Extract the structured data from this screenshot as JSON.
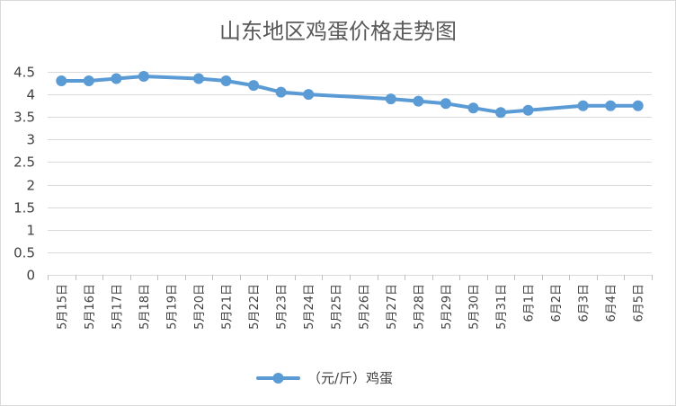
{
  "chart_data": {
    "type": "line",
    "title": "山东地区鸡蛋价格走势图",
    "x": [
      "5月15日",
      "5月16日",
      "5月17日",
      "5月18日",
      "5月19日",
      "5月20日",
      "5月21日",
      "5月22日",
      "5月23日",
      "5月24日",
      "5月25日",
      "5月26日",
      "5月27日",
      "5月28日",
      "5月29日",
      "5月30日",
      "5月31日",
      "6月1日",
      "6月2日",
      "6月3日",
      "6月4日",
      "6月5日"
    ],
    "yticks": [
      "0",
      "0.5",
      "1",
      "1.5",
      "2",
      "2.5",
      "3",
      "3.5",
      "4",
      "4.5"
    ],
    "ylim": [
      0,
      4.5
    ],
    "grid": true,
    "legend": "bottom",
    "series": [
      {
        "name": "（元/斤）鸡蛋",
        "color": "#5b9bd5",
        "values": [
          4.3,
          4.3,
          4.35,
          4.4,
          null,
          4.35,
          4.3,
          4.2,
          4.05,
          4.0,
          null,
          null,
          3.9,
          3.85,
          3.8,
          3.7,
          3.6,
          3.65,
          null,
          3.75,
          3.75,
          3.75
        ]
      }
    ]
  }
}
